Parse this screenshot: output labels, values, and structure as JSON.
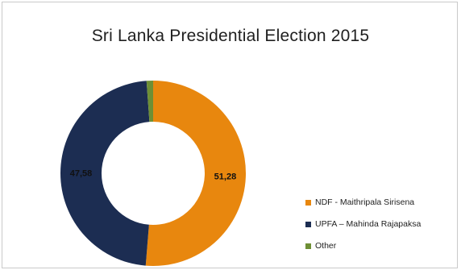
{
  "chart_data": {
    "type": "pie",
    "title": "Sri Lanka Presidential Election 2015",
    "donut": true,
    "series": [
      {
        "name": "NDF - Maithripala Sirisena",
        "value": 51.28,
        "label": "51,28",
        "color": "#e8870e"
      },
      {
        "name": "UPFA – Mahinda Rajapaksa",
        "value": 47.58,
        "label": "47,58",
        "color": "#1c2d52"
      },
      {
        "name": "Other",
        "value": 1.14,
        "label": "",
        "color": "#6e8f35"
      }
    ],
    "legend_position": "bottom-right"
  }
}
